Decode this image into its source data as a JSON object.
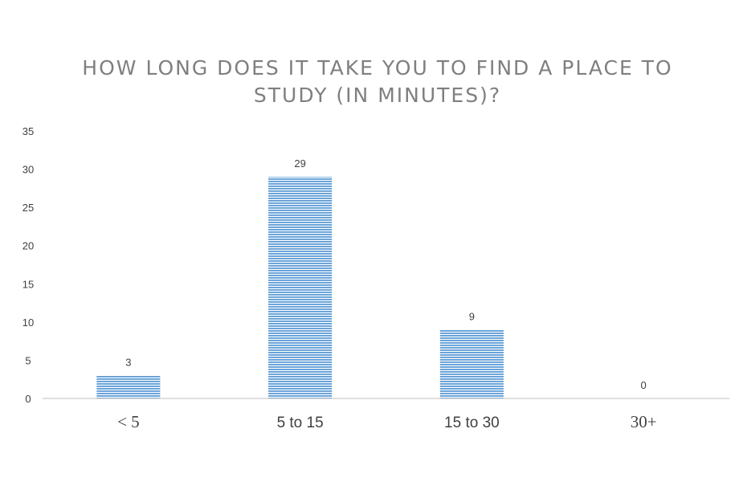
{
  "chart_data": {
    "type": "bar",
    "title_lines": [
      "HOW LONG DOES IT TAKE YOU TO FIND A PLACE TO",
      "STUDY (IN MINUTES)?"
    ],
    "categories": [
      "< 5",
      "5 to 15",
      "15 to 30",
      "30+"
    ],
    "values": [
      3,
      29,
      9,
      0
    ],
    "data_labels": [
      "3",
      "29",
      "9",
      "0"
    ],
    "ylim": [
      0,
      35
    ],
    "yticks": [
      "0",
      "5",
      "10",
      "15",
      "20",
      "25",
      "30",
      "35"
    ],
    "grid": false,
    "legend": "none",
    "bar_color": "#5b9bd5",
    "bar_stripe_color": "#ffffff",
    "axis_color": "#bfbfbf",
    "title_color": "#7f7f7f"
  }
}
